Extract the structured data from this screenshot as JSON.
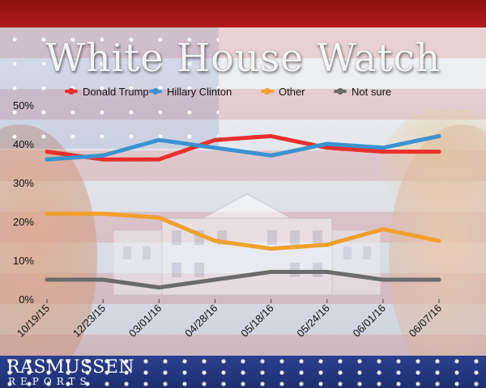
{
  "chart_data": {
    "type": "line",
    "title": "White House Watch",
    "categories": [
      "10/19/15",
      "12/23/15",
      "03/01/16",
      "04/28/16",
      "05/18/16",
      "05/24/16",
      "06/01/16",
      "06/07/16"
    ],
    "ylim": [
      0,
      50
    ],
    "yticks": [
      0,
      10,
      20,
      30,
      40,
      50
    ],
    "ytick_labels": [
      "0%",
      "10%",
      "20%",
      "30%",
      "40%",
      "50%"
    ],
    "xlabel": "",
    "ylabel": "",
    "grid": false,
    "legend": "top",
    "series": [
      {
        "name": "Donald Trump",
        "color": "#e8302c",
        "values": [
          38,
          36,
          36,
          41,
          42,
          39,
          38,
          38
        ]
      },
      {
        "name": "Hillary Clinton",
        "color": "#3b93d0",
        "values": [
          36,
          37,
          41,
          39,
          37,
          40,
          39,
          42
        ]
      },
      {
        "name": "Other",
        "color": "#f0a02c",
        "values": [
          22,
          22,
          21,
          15,
          13,
          14,
          18,
          15
        ]
      },
      {
        "name": "Not sure",
        "color": "#6b6b6b",
        "values": [
          5,
          5,
          3,
          5,
          7,
          7,
          5,
          5
        ]
      }
    ]
  },
  "branding": {
    "logo_line1": "RASMUSSEN",
    "logo_line2": "REPORTS"
  }
}
